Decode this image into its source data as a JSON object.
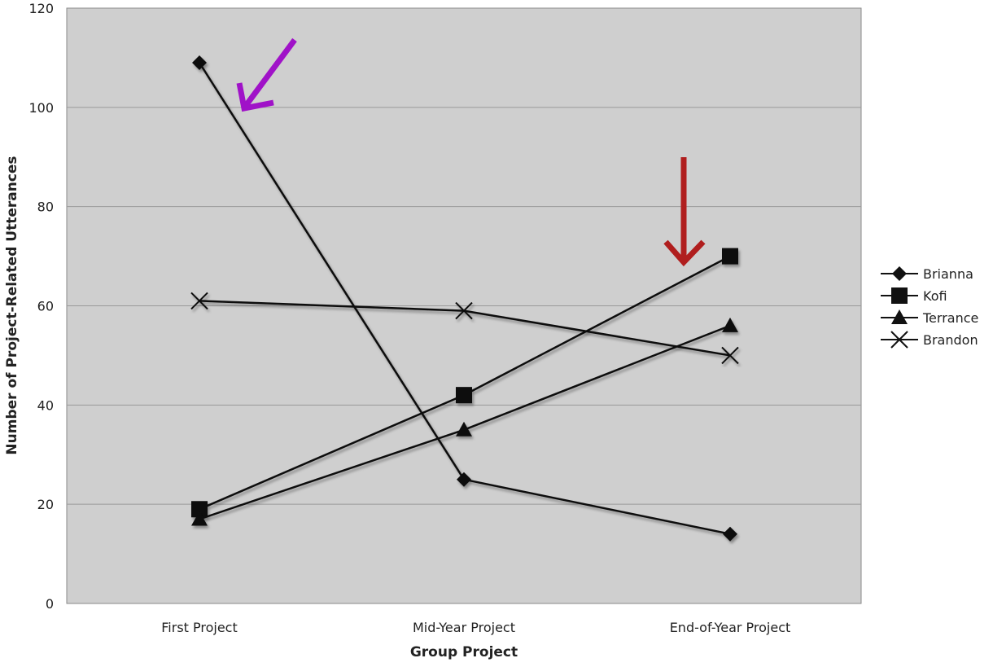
{
  "chart_data": {
    "type": "line",
    "title": "",
    "xlabel": "Group Project",
    "ylabel": "Number of Project-Related Utterances",
    "categories": [
      "First Project",
      "Mid-Year Project",
      "End-of-Year Project"
    ],
    "ylim": [
      0,
      120
    ],
    "yticks": [
      0,
      20,
      40,
      60,
      80,
      100,
      120
    ],
    "grid": true,
    "legend_position": "right",
    "colors": {
      "plot_background": "#cfcfcf",
      "gridline": "#9a9a9a",
      "series_line": "#111111",
      "annotation_arrow_purple": "#a012c8",
      "annotation_arrow_red": "#b01e1e"
    },
    "series": [
      {
        "name": "Brianna",
        "marker": "diamond",
        "values": [
          109,
          25,
          14
        ]
      },
      {
        "name": "Kofi",
        "marker": "square",
        "values": [
          19,
          42,
          70
        ]
      },
      {
        "name": "Terrance",
        "marker": "triangle",
        "values": [
          17,
          35,
          56
        ]
      },
      {
        "name": "Brandon",
        "marker": "x",
        "values": [
          61,
          59,
          50
        ]
      }
    ],
    "annotations": [
      {
        "type": "arrow",
        "color_key": "annotation_arrow_purple",
        "points_to": {
          "series": "Brianna",
          "category": "First Project"
        }
      },
      {
        "type": "arrow",
        "color_key": "annotation_arrow_red",
        "points_to": {
          "series": "Kofi",
          "category": "End-of-Year Project"
        }
      }
    ]
  }
}
